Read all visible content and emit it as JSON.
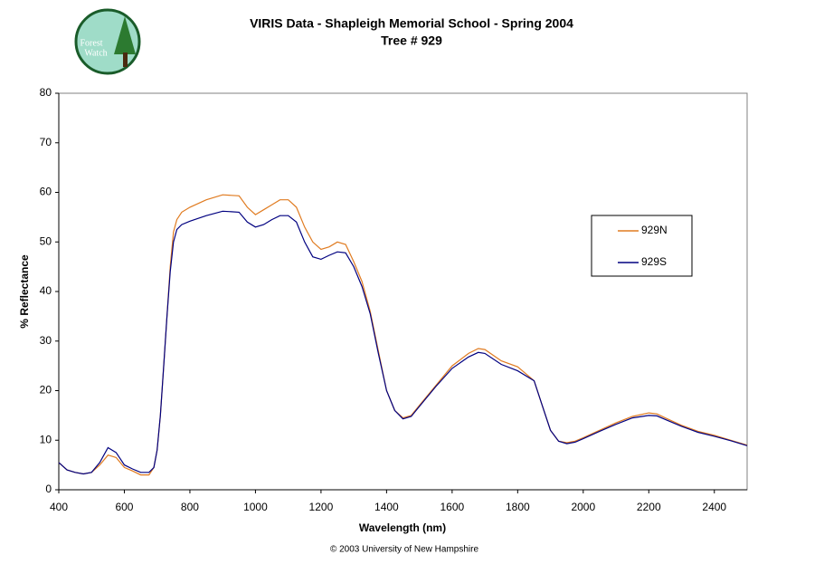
{
  "chart_data": {
    "type": "line",
    "title": "VIRIS Data - Shapleigh Memorial School - Spring 2004",
    "subtitle": "Tree # 929",
    "x_label": "Wavelength (nm)",
    "y_label": "% Reflectance",
    "footer": "© 2003 University of New Hampshire",
    "logo": [
      "Forest",
      "Watch"
    ],
    "x": [
      400,
      425,
      450,
      475,
      500,
      525,
      550,
      575,
      600,
      625,
      650,
      675,
      690,
      700,
      710,
      720,
      730,
      740,
      750,
      760,
      775,
      800,
      850,
      900,
      950,
      975,
      1000,
      1025,
      1050,
      1075,
      1100,
      1125,
      1150,
      1175,
      1200,
      1225,
      1250,
      1275,
      1300,
      1325,
      1350,
      1375,
      1400,
      1425,
      1450,
      1475,
      1500,
      1550,
      1600,
      1650,
      1680,
      1700,
      1750,
      1800,
      1850,
      1875,
      1900,
      1925,
      1950,
      1975,
      2000,
      2050,
      2100,
      2150,
      2200,
      2225,
      2250,
      2300,
      2350,
      2400,
      2450,
      2500
    ],
    "series": [
      {
        "name": "929N",
        "color": "#e07b20",
        "values": [
          5.5,
          4,
          3.5,
          3.2,
          3.5,
          5,
          7,
          6.5,
          4.5,
          3.8,
          3,
          3,
          4.5,
          8,
          15,
          25,
          35,
          45,
          52,
          54.5,
          56,
          57,
          58.5,
          59.5,
          59.3,
          57,
          55.5,
          56.5,
          57.5,
          58.5,
          58.5,
          57,
          53,
          50,
          48.5,
          49,
          50,
          49.5,
          46,
          42,
          36,
          28,
          20,
          16,
          14.5,
          15,
          17,
          21,
          25,
          27.5,
          28.5,
          28.3,
          26,
          24.8,
          22,
          17,
          12,
          9.8,
          9.5,
          9.8,
          10.5,
          12,
          13.5,
          14.8,
          15.5,
          15.3,
          14.5,
          13,
          11.8,
          11,
          10,
          9
        ]
      },
      {
        "name": "929S",
        "color": "#000080",
        "values": [
          5.5,
          4,
          3.5,
          3.2,
          3.5,
          5.5,
          8.5,
          7.5,
          5,
          4.2,
          3.5,
          3.5,
          4.5,
          8,
          15,
          25,
          35,
          44,
          50,
          52.5,
          53.5,
          54.2,
          55.3,
          56.2,
          56,
          54,
          53,
          53.5,
          54.5,
          55.3,
          55.3,
          54,
          50,
          47,
          46.5,
          47.3,
          48,
          47.8,
          45,
          41,
          35.5,
          27.5,
          20,
          16,
          14.3,
          14.8,
          16.8,
          20.8,
          24.5,
          26.8,
          27.7,
          27.5,
          25.3,
          24,
          22,
          17,
          12,
          9.8,
          9.3,
          9.6,
          10.3,
          11.8,
          13.2,
          14.5,
          15,
          14.9,
          14.2,
          12.8,
          11.6,
          10.8,
          9.9,
          8.9
        ]
      }
    ],
    "xlim": [
      400,
      2500
    ],
    "xticks": [
      400,
      600,
      800,
      1000,
      1200,
      1400,
      1600,
      1800,
      2000,
      2200,
      2400
    ],
    "ylim": [
      0,
      80
    ],
    "yticks": [
      0,
      10,
      20,
      30,
      40,
      50,
      60,
      70,
      80
    ],
    "grid": false,
    "legend": "right"
  }
}
